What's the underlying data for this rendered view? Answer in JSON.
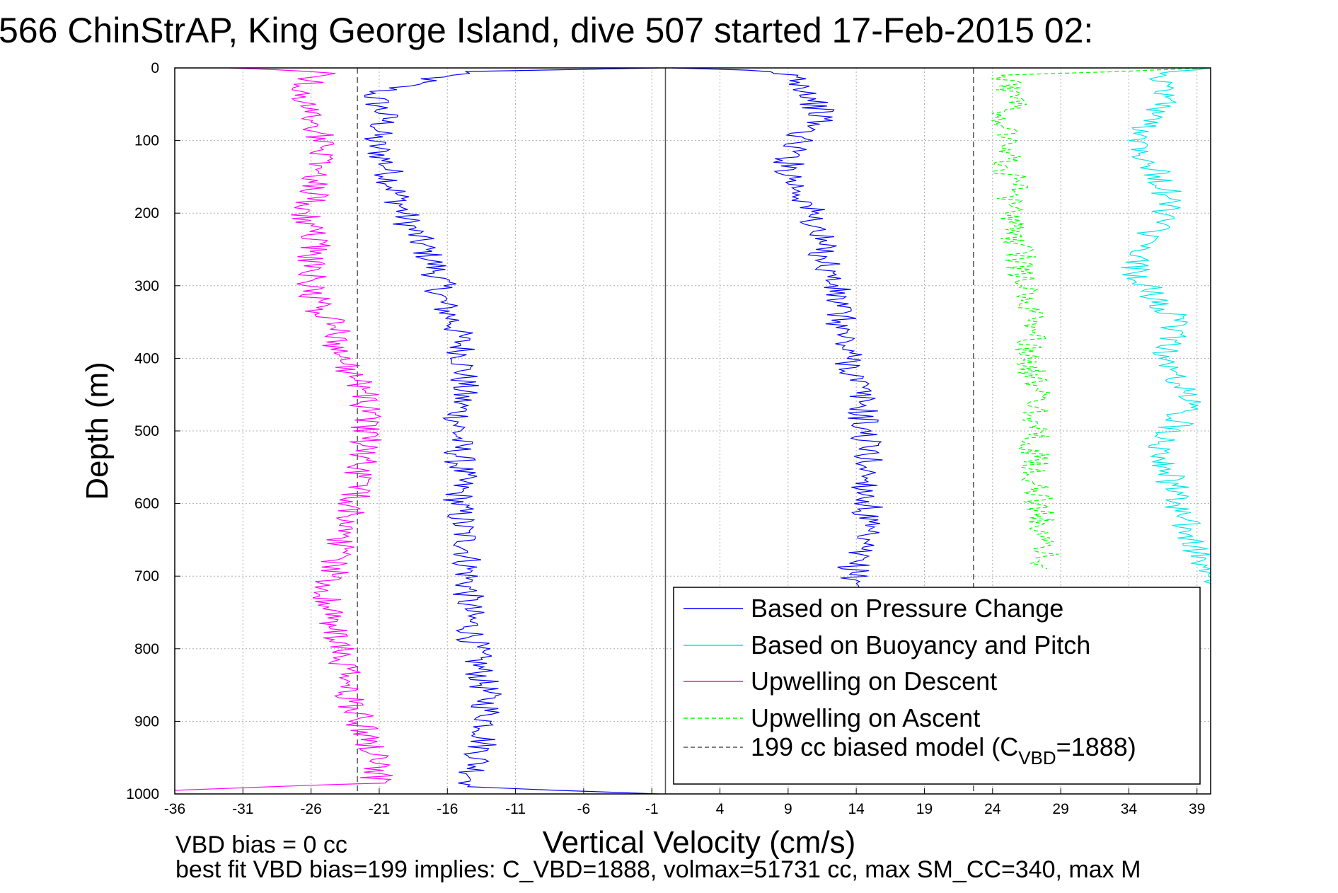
{
  "chart_data": {
    "type": "line",
    "title": "566 ChinStrAP, King George Island, dive 507 started 17-Feb-2015 02:",
    "xlabel": "Vertical Velocity (cm/s)",
    "ylabel": "Depth (m)",
    "xlim": [
      -36,
      40
    ],
    "ylim": [
      0,
      1000
    ],
    "y_reversed": true,
    "grid": true,
    "x_ticks": [
      -36,
      -31,
      -26,
      -21,
      -16,
      -11,
      -6,
      -1,
      4,
      9,
      14,
      19,
      24,
      29,
      34,
      39
    ],
    "y_ticks": [
      0,
      100,
      200,
      300,
      400,
      500,
      600,
      700,
      800,
      900,
      1000
    ],
    "reference_lines": [
      {
        "series": "model",
        "x": -22.6
      },
      {
        "series": "model",
        "x": 22.6
      },
      {
        "series": "zero",
        "x": 0
      }
    ],
    "legend_position": "bottom-right",
    "series": [
      {
        "name": "Based on Pressure Change",
        "color": "#0000ff",
        "style": "solid",
        "x": [
          -0.5,
          -15,
          -21.5,
          -20.5,
          -21.5,
          -20.5,
          -20,
          -19.5,
          -19,
          -18,
          -17,
          -16.5,
          -16.5,
          -15.5,
          -15,
          -14.8,
          -14.8,
          -15,
          -15.2,
          -15.2,
          -15,
          -15.2,
          -15,
          -14.5,
          -14.5,
          -14.5,
          -14.2,
          -13.8,
          -13.2,
          -13,
          -13.5,
          -14,
          -14.2,
          -14.5,
          -8,
          -0.5
        ],
        "y": [
          0,
          5,
          35,
          70,
          100,
          130,
          160,
          185,
          210,
          240,
          270,
          300,
          320,
          350,
          380,
          400,
          430,
          460,
          490,
          520,
          560,
          600,
          630,
          660,
          700,
          740,
          780,
          820,
          860,
          900,
          940,
          970,
          985,
          990,
          995,
          1000
        ]
      },
      {
        "name": "Based on Pressure Change",
        "color": "#0000ff",
        "style": "solid",
        "x": [
          0.5,
          6,
          9.5,
          10.5,
          11,
          11.5,
          10,
          9.5,
          9,
          9.5,
          10.5,
          11,
          11.5,
          12,
          12.5,
          12.8,
          13,
          13.5,
          14,
          14.5,
          14.5,
          14.8,
          14.8,
          14.8,
          14.5,
          14,
          13.8,
          14,
          14.2
        ],
        "y": [
          0,
          3,
          10,
          30,
          50,
          70,
          90,
          110,
          130,
          160,
          190,
          220,
          250,
          280,
          310,
          340,
          370,
          400,
          430,
          460,
          490,
          520,
          560,
          600,
          640,
          670,
          690,
          705,
          715
        ]
      },
      {
        "name": "Based on Buoyancy and Pitch",
        "color": "#00e6e6",
        "style": "solid",
        "x": [
          40,
          36,
          37,
          35.5,
          35,
          35.5,
          36.5,
          37,
          36,
          34.5,
          34.5,
          35.5,
          37,
          37.5,
          36.5,
          37.5,
          38.5,
          37.5,
          36.5,
          37,
          37.5,
          38.5,
          39.5,
          40
        ],
        "y": [
          0,
          10,
          40,
          70,
          100,
          130,
          160,
          190,
          220,
          250,
          280,
          310,
          340,
          370,
          400,
          430,
          460,
          490,
          520,
          560,
          600,
          650,
          690,
          715
        ]
      },
      {
        "name": "Upwelling on Descent",
        "color": "#ff00ff",
        "style": "solid",
        "x": [
          -32,
          -25,
          -27,
          -26,
          -25.5,
          -25,
          -25.5,
          -26,
          -26.5,
          -25.5,
          -26,
          -26,
          -25.5,
          -24,
          -24,
          -23,
          -22,
          -22,
          -22,
          -22.5,
          -23,
          -23.5,
          -24,
          -24.5,
          -25,
          -24.5,
          -24,
          -23.5,
          -23.5,
          -22.5,
          -22,
          -21,
          -21,
          -21.5,
          -36
        ],
        "y": [
          0,
          5,
          30,
          60,
          90,
          120,
          150,
          180,
          210,
          240,
          270,
          300,
          330,
          360,
          390,
          420,
          450,
          480,
          520,
          560,
          600,
          640,
          670,
          700,
          730,
          760,
          800,
          830,
          860,
          890,
          920,
          950,
          970,
          985,
          995
        ]
      },
      {
        "name": "Upwelling on Ascent",
        "color": "#00ff00",
        "style": "dashed",
        "x": [
          40,
          25,
          25.5,
          25,
          25.5,
          25,
          25.5,
          25,
          25.5,
          26,
          26,
          26.5,
          26.5,
          27,
          26.5,
          27,
          27.5,
          27,
          27,
          27.5,
          28
        ],
        "y": [
          0,
          10,
          40,
          70,
          100,
          130,
          160,
          190,
          220,
          250,
          280,
          310,
          340,
          370,
          400,
          440,
          470,
          500,
          560,
          620,
          690
        ]
      }
    ],
    "legend": [
      {
        "label": "Based on Pressure Change",
        "color": "#0000ff",
        "style": "solid"
      },
      {
        "label": "Based on Buoyancy and Pitch",
        "color": "#00e6e6",
        "style": "solid"
      },
      {
        "label": "Upwelling on Descent",
        "color": "#ff00ff",
        "style": "solid"
      },
      {
        "label": "Upwelling on Ascent",
        "color": "#00ff00",
        "style": "dashed"
      },
      {
        "label": "199 cc biased model (C",
        "sub": "VBD",
        "label_tail": "=1888)",
        "color": "#555555",
        "style": "dashed"
      }
    ],
    "annotations": [
      "VBD bias = 0 cc",
      "best fit VBD bias=199 implies: C_VBD=1888, volmax=51731 cc, max SM_CC=340, max M"
    ]
  }
}
